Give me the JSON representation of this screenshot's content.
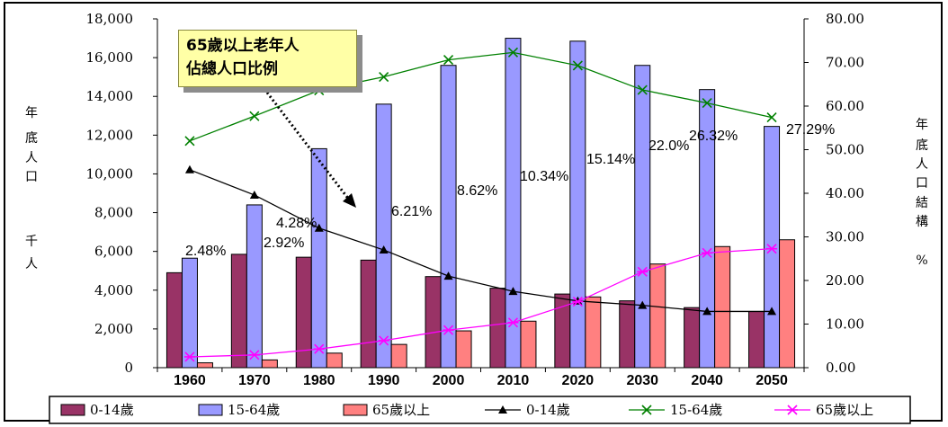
{
  "chart_data": {
    "type": "bar",
    "x": [
      "1960",
      "1970",
      "1980",
      "1990",
      "2000",
      "2010",
      "2020",
      "2030",
      "2040",
      "2050"
    ],
    "left_axis": {
      "label": [
        "年",
        "底",
        "人",
        "口",
        "千",
        "人"
      ],
      "ylim": [
        0,
        18000
      ],
      "ticks": [
        "0",
        "2,000",
        "4,000",
        "6,000",
        "8,000",
        "10,000",
        "12,000",
        "14,000",
        "16,000",
        "18,000"
      ]
    },
    "right_axis": {
      "label": [
        "年",
        "底",
        "人",
        "口",
        "結",
        "構",
        "%"
      ],
      "ylim": [
        0,
        80
      ],
      "ticks": [
        "0.00",
        "10.00",
        "20.00",
        "30.00",
        "40.00",
        "50.00",
        "60.00",
        "70.00",
        "80.00"
      ]
    },
    "bar_series": [
      {
        "name": "0-14歲",
        "color": "#993366",
        "values": [
          4900,
          5850,
          5700,
          5550,
          4700,
          4100,
          3800,
          3450,
          3100,
          2900
        ]
      },
      {
        "name": "15-64歲",
        "color": "#9999ff",
        "values": [
          5650,
          8400,
          11300,
          13600,
          15600,
          17000,
          16850,
          15600,
          14350,
          12450
        ]
      },
      {
        "name": "65歲以上",
        "color": "#ff8080",
        "values": [
          250,
          400,
          750,
          1200,
          1900,
          2400,
          3650,
          5350,
          6250,
          6600
        ]
      }
    ],
    "line_series": [
      {
        "name": "0-14歲",
        "color": "#000000",
        "marker": "triangle",
        "values": [
          45.4,
          39.6,
          32.0,
          27.0,
          21.0,
          17.5,
          15.3,
          14.3,
          12.9,
          12.9
        ]
      },
      {
        "name": "15-64歲",
        "color": "#008000",
        "marker": "x",
        "values": [
          52.0,
          57.7,
          63.6,
          66.7,
          70.6,
          72.3,
          69.3,
          63.7,
          60.7,
          57.4
        ]
      },
      {
        "name": "65歲以上",
        "color": "#ff00ff",
        "marker": "star",
        "values": [
          2.48,
          2.92,
          4.28,
          6.21,
          8.62,
          10.34,
          15.14,
          22.0,
          26.32,
          27.29
        ]
      }
    ],
    "data_labels": [
      "2.48%",
      "2.92%",
      "4.28%",
      "6.21%",
      "8.62%",
      "10.34%",
      "15.14%",
      "22.0%",
      "26.32%",
      "27.29%"
    ],
    "annotation": {
      "lines": [
        "65歲以上老年人",
        "佔總人口比例"
      ]
    },
    "legend_position": "bottom",
    "grid": false
  }
}
